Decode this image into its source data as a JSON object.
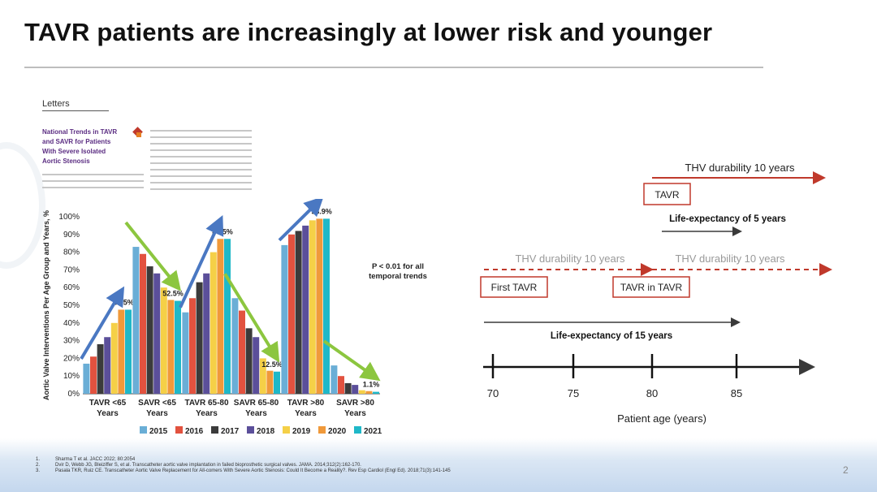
{
  "slide": {
    "title": "TAVR patients are increasingly at lower risk and younger",
    "page_number": "2"
  },
  "article": {
    "section": "Letters",
    "title": "National Trends in TAVR and SAVR for Patients With Severe Isolated Aortic Stenosis"
  },
  "chart_data": {
    "type": "bar",
    "ylabel": "Aortic Valve Interventions Per Age Group and Years, %",
    "ylim": [
      0,
      100
    ],
    "yticks": [
      "0%",
      "10%",
      "20%",
      "30%",
      "40%",
      "50%",
      "60%",
      "70%",
      "80%",
      "90%",
      "100%"
    ],
    "categories": [
      "TAVR <65 Years",
      "SAVR <65 Years",
      "TAVR 65-80 Years",
      "SAVR 65-80 Years",
      "TAVR >80 Years",
      "SAVR >80 Years"
    ],
    "category_lines": [
      [
        "TAVR <65",
        "Years"
      ],
      [
        "SAVR <65",
        "Years"
      ],
      [
        "TAVR 65-80",
        "Years"
      ],
      [
        "SAVR 65-80",
        "Years"
      ],
      [
        "TAVR >80",
        "Years"
      ],
      [
        "SAVR >80",
        "Years"
      ]
    ],
    "series": [
      {
        "name": "2015",
        "color": "#6aaed6",
        "values": [
          17,
          83,
          46,
          54,
          84,
          16
        ]
      },
      {
        "name": "2016",
        "color": "#e2523f",
        "values": [
          21,
          79,
          54,
          47,
          90,
          10
        ]
      },
      {
        "name": "2017",
        "color": "#3b3b3b",
        "values": [
          28,
          72,
          63,
          37,
          92,
          6
        ]
      },
      {
        "name": "2018",
        "color": "#5b4f9a",
        "values": [
          32,
          68,
          68,
          32,
          95,
          5
        ]
      },
      {
        "name": "2019",
        "color": "#f5d047",
        "values": [
          40,
          60,
          80,
          20,
          98,
          2
        ]
      },
      {
        "name": "2020",
        "color": "#f0993a",
        "values": [
          47.5,
          53,
          87.5,
          13,
          98.9,
          1.5
        ]
      },
      {
        "name": "2021",
        "color": "#1fb8c8",
        "values": [
          47.5,
          52.5,
          87.5,
          12.5,
          98.9,
          1.1
        ]
      }
    ],
    "data_labels": [
      "47.5%",
      "52.5%",
      "87.5%",
      "12.5%",
      "98.9%",
      "1.1%"
    ],
    "annotation": [
      "P < 0.01 for all",
      "temporal trends"
    ],
    "trend_arrows": [
      "up",
      "down",
      "up",
      "down",
      "up",
      "down"
    ]
  },
  "timeline": {
    "thv_durability_top": "THV durability 10 years",
    "tavr_box": "TAVR",
    "life_expectancy_5": "Life-expectancy of 5 years",
    "thv_durability_1": "THV durability 10 years",
    "thv_durability_2": "THV durability 10 years",
    "first_tavr": "First TAVR",
    "tavr_in_tavr": "TAVR in TAVR",
    "life_expectancy_15": "Life-expectancy of 15 years",
    "ticks": [
      "70",
      "75",
      "80",
      "85"
    ],
    "xlabel": "Patient age (years)",
    "red": "#c0392b",
    "dark": "#3a3a3a"
  },
  "references": [
    {
      "num": "1.",
      "text": "Sharma T et al. JACC 2022; 80:2054"
    },
    {
      "num": "2.",
      "text": "Dvir D, Webb JG, Bleiziffer S, et al. Transcatheter aortic valve implantation in failed bioprosthetic surgical valves. JAMA. 2014;312(2):162-170."
    },
    {
      "num": "3.",
      "text": "Pasala TKR, Ruiz CE. Transcatheter Aortic Valve Replacement for All-comers With Severe Aortic Stenosis: Could It Become a Reality?. Rev Esp Cardiol (Engl Ed). 2018;71(3):141-145"
    }
  ]
}
